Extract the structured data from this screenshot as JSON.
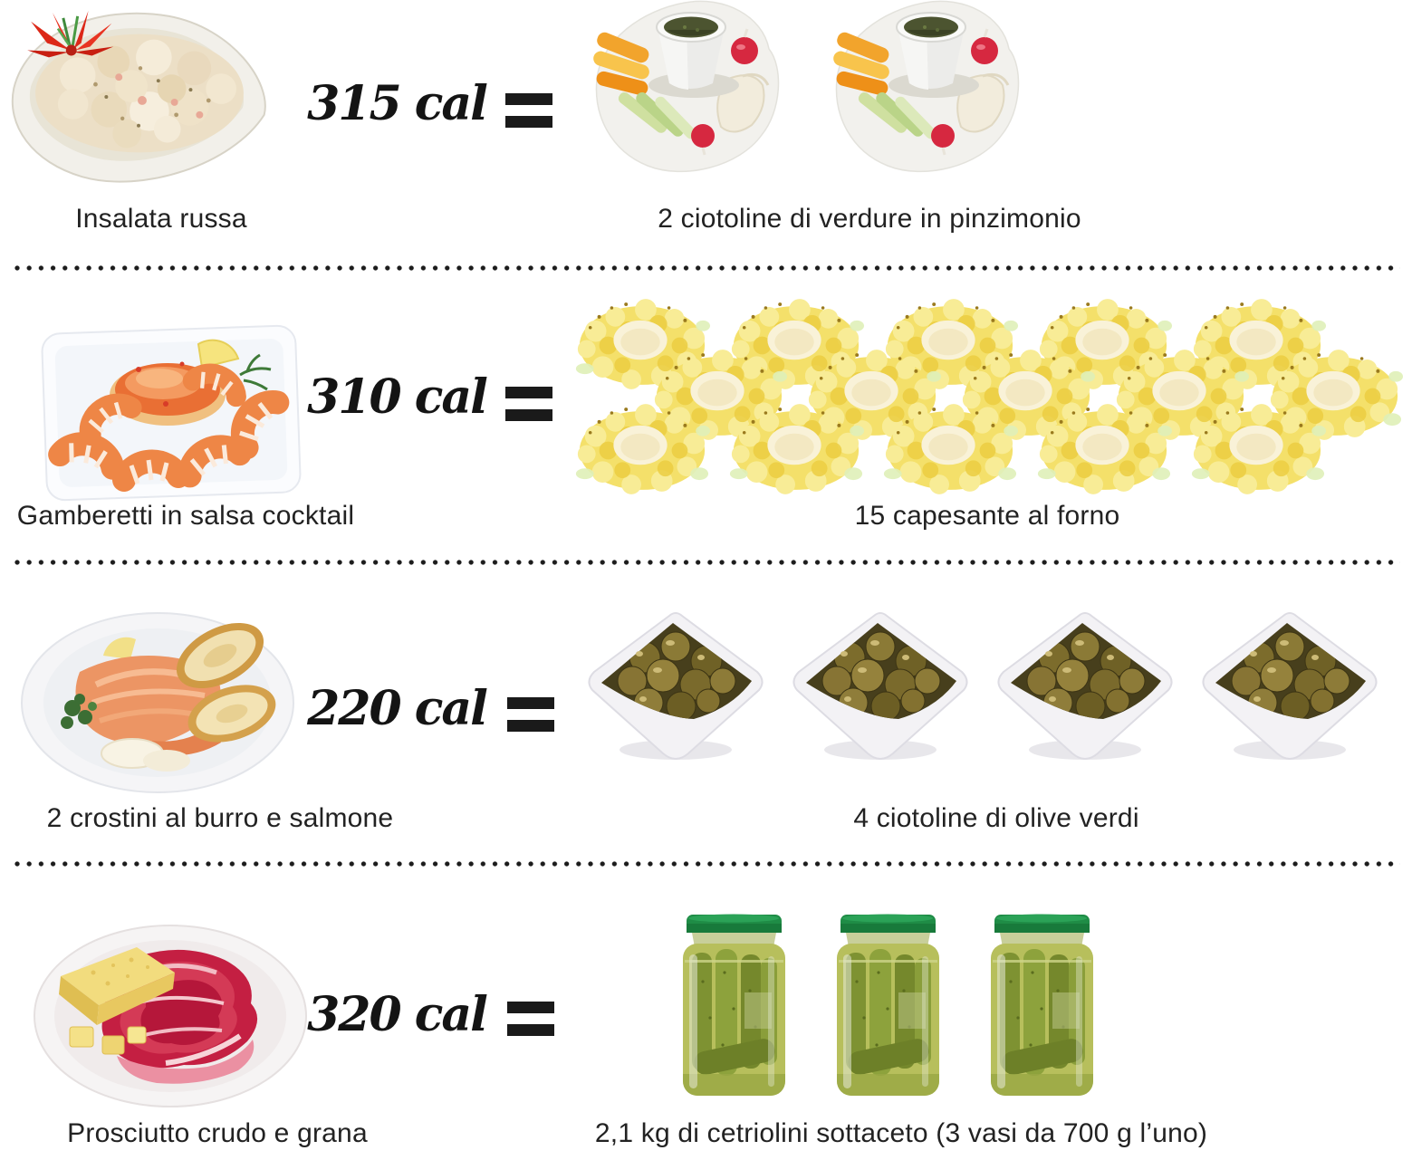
{
  "infographic": {
    "equals_symbol": "=",
    "comparisons": [
      {
        "dish_label": "Insalata russa",
        "calories_label": "315 cal",
        "equivalent_label": "2 ciotoline di verdure in pinzimonio",
        "equivalent_count": 2
      },
      {
        "dish_label": "Gamberetti in salsa cocktail",
        "calories_label": "310 cal",
        "equivalent_label": "15 capesante al forno",
        "equivalent_count": 15
      },
      {
        "dish_label": "2 crostini al burro e salmone",
        "calories_label": "220 cal",
        "equivalent_label": "4 ciotoline di olive verdi",
        "equivalent_count": 4
      },
      {
        "dish_label": "Prosciutto crudo e grana",
        "calories_label": "320 cal",
        "equivalent_label": "2,1 kg di cetriolini sottaceto (3 vasi da 700 g l’uno)",
        "equivalent_count": 3
      }
    ],
    "colors": {
      "caption_text": "#222222",
      "calorie_text": "#141414",
      "separator_dots": "#1c1c1c",
      "background": "#ffffff"
    }
  }
}
